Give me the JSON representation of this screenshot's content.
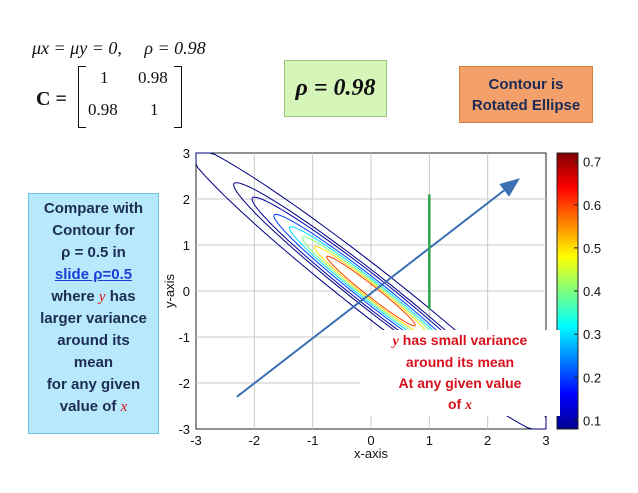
{
  "equation": {
    "mu_line": "μx = μy = 0,",
    "rho_line": "ρ = 0.98",
    "matrix_label": "C =",
    "matrix": [
      [
        "1",
        "0.98"
      ],
      [
        "0.98",
        "1"
      ]
    ]
  },
  "rho_box": {
    "text": "ρ = 0.98",
    "color": "#d6f5b8"
  },
  "contour_box": {
    "line1": "Contour is",
    "line2": "Rotated Ellipse",
    "color": "#f4a06b"
  },
  "compare_box": {
    "line1": "Compare with",
    "line2": "Contour for",
    "line3": "ρ = 0.5 in",
    "link": "slide ρ=0.5",
    "line5a": "where",
    "line5_var": "y",
    "line5b": "has",
    "line6": "larger variance",
    "line7": "around its",
    "line8": "mean",
    "line9": "for any given",
    "line10a": "value of",
    "line10_var": "x",
    "color": "#b7e8fb"
  },
  "annotation": {
    "line1_var": "y",
    "line1b": "has small variance",
    "line2": "around its mean",
    "line3": "At any given value",
    "line4a": "of",
    "line4_var": "x",
    "color": "#d8101c"
  },
  "chart_data": {
    "type": "contour",
    "xlabel": "x-axis",
    "ylabel": "y-axis",
    "xlim": [
      -3,
      3
    ],
    "ylim": [
      -3,
      3
    ],
    "xticks": [
      "-3",
      "-2",
      "-1",
      "0",
      "1",
      "2",
      "3"
    ],
    "yticks": [
      "-3",
      "-2",
      "-1",
      "0",
      "1",
      "2",
      "3"
    ],
    "grid": true,
    "rho": 0.98,
    "contour_levels": [
      0.005,
      0.05,
      0.1,
      0.2,
      0.3,
      0.4,
      0.5,
      0.6
    ],
    "colorbar": {
      "ticks": [
        "0.1",
        "0.2",
        "0.3",
        "0.4",
        "0.5",
        "0.6",
        "0.7"
      ],
      "range": [
        0.08,
        0.72
      ]
    },
    "arrow": {
      "from": [
        -2.3,
        -2.3
      ],
      "to": [
        2.5,
        2.4
      ]
    },
    "vertical_line": {
      "x": 1.0,
      "y_from": -0.4,
      "y_to": 2.1,
      "color": "#2aa44a"
    }
  }
}
